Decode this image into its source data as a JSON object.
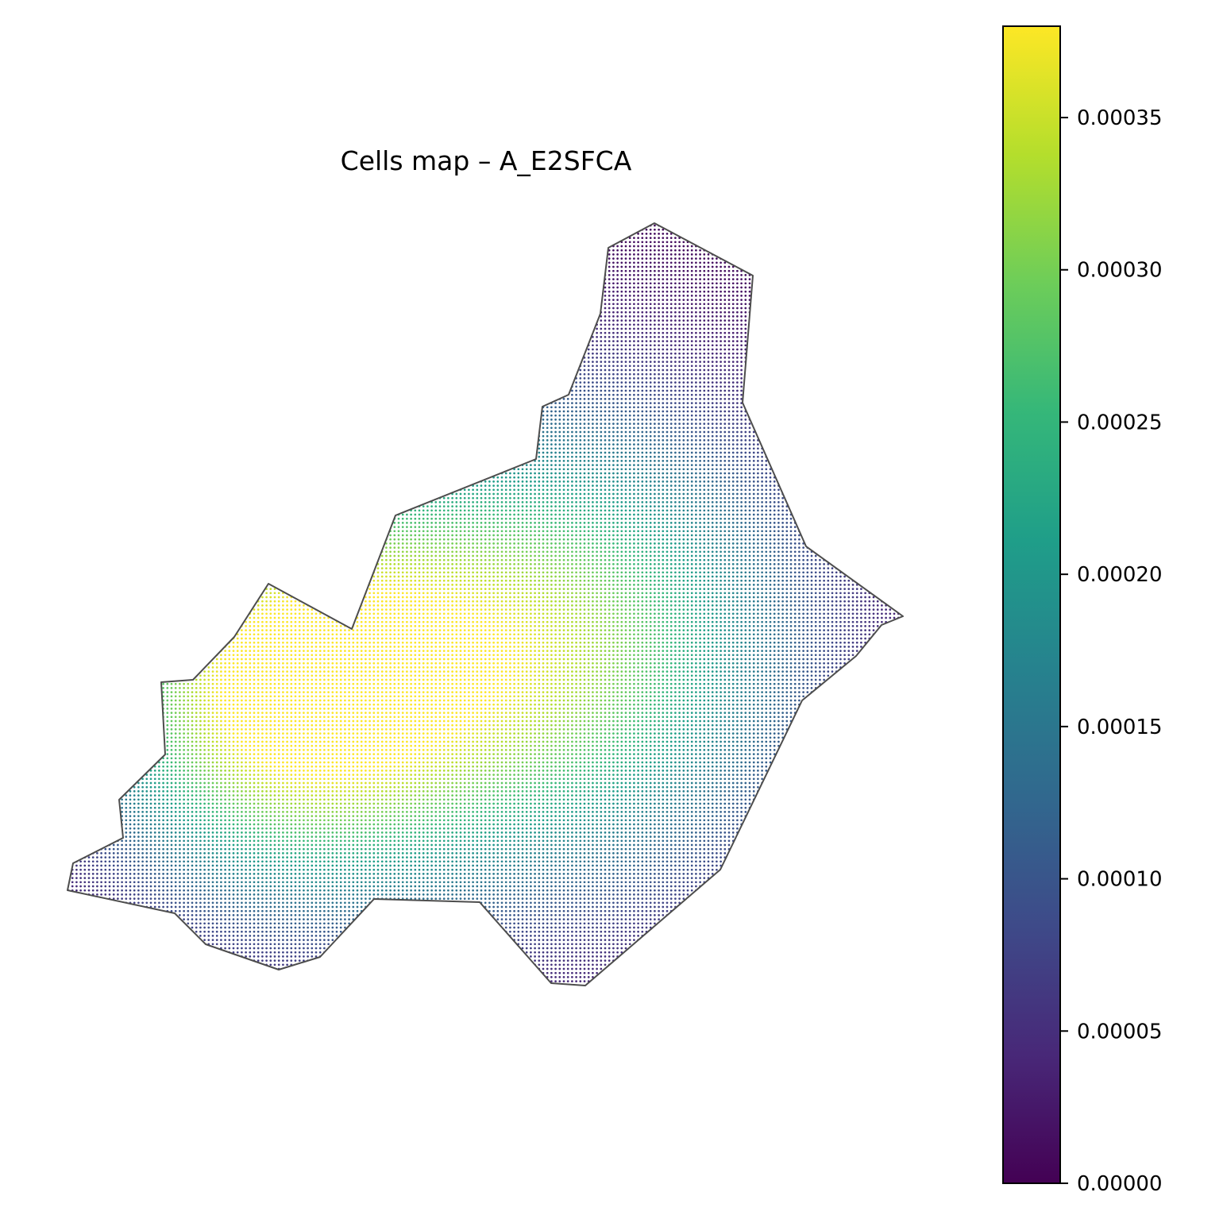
{
  "chart_data": {
    "type": "heatmap",
    "title": "Cells map – A_E2SFCA",
    "variable": "A_E2SFCA",
    "colormap": "viridis",
    "colorbar": {
      "range": [
        0.0,
        0.00038
      ],
      "ticks": [
        {
          "value": 0.0,
          "label": "0.00000"
        },
        {
          "value": 5e-05,
          "label": "0.00005"
        },
        {
          "value": 0.0001,
          "label": "0.00010"
        },
        {
          "value": 0.00015,
          "label": "0.00015"
        },
        {
          "value": 0.0002,
          "label": "0.00020"
        },
        {
          "value": 0.00025,
          "label": "0.00025"
        },
        {
          "value": 0.0003,
          "label": "0.00030"
        },
        {
          "value": 0.00035,
          "label": "0.00035"
        }
      ],
      "placement": "right"
    },
    "grid": false,
    "axes_visible": false,
    "peaks": [
      {
        "location": "west hotspot",
        "value": 0.00038
      },
      {
        "location": "central hotspot",
        "value": 0.0003
      }
    ],
    "colors": {
      "boundary": "#4d4d4d",
      "low": "#440154",
      "high": "#fde725"
    }
  }
}
